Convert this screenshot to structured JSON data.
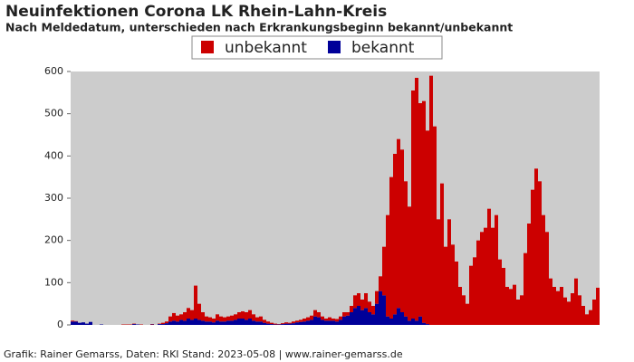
{
  "chart_data": {
    "type": "stacked-bar",
    "title": "Neuinfektionen Corona LK Rhein-Lahn-Kreis",
    "subtitle": "Nach Meldedatum, unterschieden nach Erkrankungsbeginn bekannt/unbekannt",
    "source": "Grafik: Rainer Gemarss, Daten: RKI Stand: 2023-05-08 | www.rainer-gemarss.de",
    "ylim": [
      0,
      600
    ],
    "yticks": [
      0,
      100,
      200,
      300,
      400,
      500,
      600
    ],
    "series": [
      {
        "name": "unbekannt",
        "color": "#cc0000",
        "values": [
          2,
          1,
          0,
          0,
          0,
          0,
          0,
          0,
          0,
          0,
          0,
          0,
          0,
          0,
          1,
          1,
          1,
          1,
          0,
          1,
          0,
          0,
          1,
          0,
          1,
          3,
          4,
          12,
          18,
          14,
          13,
          20,
          25,
          23,
          78,
          38,
          20,
          12,
          10,
          9,
          15,
          12,
          10,
          10,
          12,
          13,
          15,
          17,
          18,
          20,
          15,
          10,
          12,
          7,
          5,
          3,
          2,
          1,
          2,
          3,
          2,
          4,
          4,
          5,
          7,
          8,
          10,
          15,
          12,
          8,
          5,
          8,
          5,
          6,
          8,
          10,
          8,
          15,
          30,
          30,
          25,
          35,
          25,
          20,
          30,
          35,
          115,
          240,
          335,
          380,
          400,
          385,
          320,
          270,
          540,
          575,
          505,
          525,
          458,
          590,
          470,
          250,
          335,
          185,
          250,
          190,
          150,
          90,
          70,
          50,
          140,
          160,
          200,
          220,
          230,
          275,
          230,
          260,
          155,
          135,
          90,
          85,
          95,
          60,
          70,
          170,
          240,
          320,
          370,
          340,
          260,
          220,
          110,
          90,
          80,
          90,
          65,
          55,
          75,
          110,
          70,
          45,
          25,
          35,
          60,
          88
        ]
      },
      {
        "name": "bekannt",
        "color": "#000099",
        "values": [
          8,
          8,
          5,
          6,
          3,
          7,
          0,
          0,
          1,
          0,
          0,
          0,
          0,
          0,
          0,
          0,
          0,
          2,
          1,
          0,
          0,
          0,
          1,
          0,
          2,
          2,
          4,
          8,
          10,
          8,
          12,
          10,
          15,
          12,
          15,
          12,
          10,
          8,
          8,
          6,
          10,
          8,
          8,
          10,
          10,
          12,
          15,
          15,
          12,
          15,
          10,
          8,
          8,
          5,
          3,
          2,
          1,
          1,
          2,
          3,
          3,
          4,
          6,
          7,
          8,
          10,
          12,
          20,
          18,
          12,
          10,
          10,
          10,
          8,
          12,
          20,
          22,
          30,
          40,
          45,
          35,
          40,
          30,
          25,
          50,
          80,
          70,
          20,
          15,
          25,
          40,
          30,
          20,
          10,
          15,
          10,
          20,
          5,
          2,
          0,
          0,
          0,
          0,
          0,
          0,
          0,
          0,
          0,
          0,
          0,
          0,
          0,
          0,
          0,
          0,
          0,
          0,
          0,
          0,
          0,
          0,
          0,
          0,
          0,
          0,
          0,
          0,
          0,
          0,
          0,
          0,
          0,
          0,
          0,
          0,
          0,
          0,
          0,
          0,
          0,
          0,
          0,
          0,
          0,
          0,
          0
        ]
      }
    ]
  }
}
